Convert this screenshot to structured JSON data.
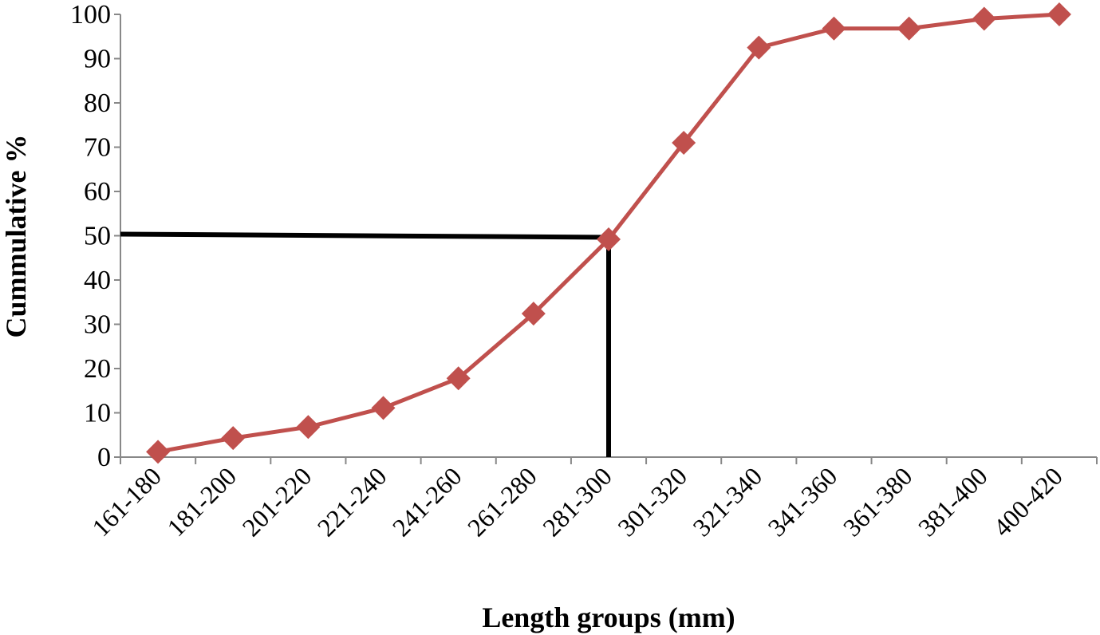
{
  "chart_data": {
    "type": "line",
    "title": "",
    "xlabel": "Length groups (mm)",
    "ylabel": "Cummulative %",
    "ylim": [
      0,
      100
    ],
    "yticks": [
      0,
      10,
      20,
      30,
      40,
      50,
      60,
      70,
      80,
      90,
      100
    ],
    "grid": false,
    "legend": "none",
    "categories": [
      "161-180",
      "181-200",
      "201-220",
      "221-240",
      "241-260",
      "261-280",
      "281-300",
      "301-320",
      "321-340",
      "341-360",
      "361-380",
      "381-400",
      "400-420"
    ],
    "series": [
      {
        "values": [
          1.2,
          4.3,
          6.8,
          11.1,
          17.8,
          32.4,
          49.2,
          71.0,
          92.5,
          96.8,
          96.8,
          99.0,
          100.0
        ],
        "color": "#c0504d",
        "marker": "diamond"
      }
    ],
    "annotations": [
      {
        "type": "reference-lines",
        "y_value": 50,
        "x_category": "281-300",
        "color": "#000000"
      }
    ]
  }
}
